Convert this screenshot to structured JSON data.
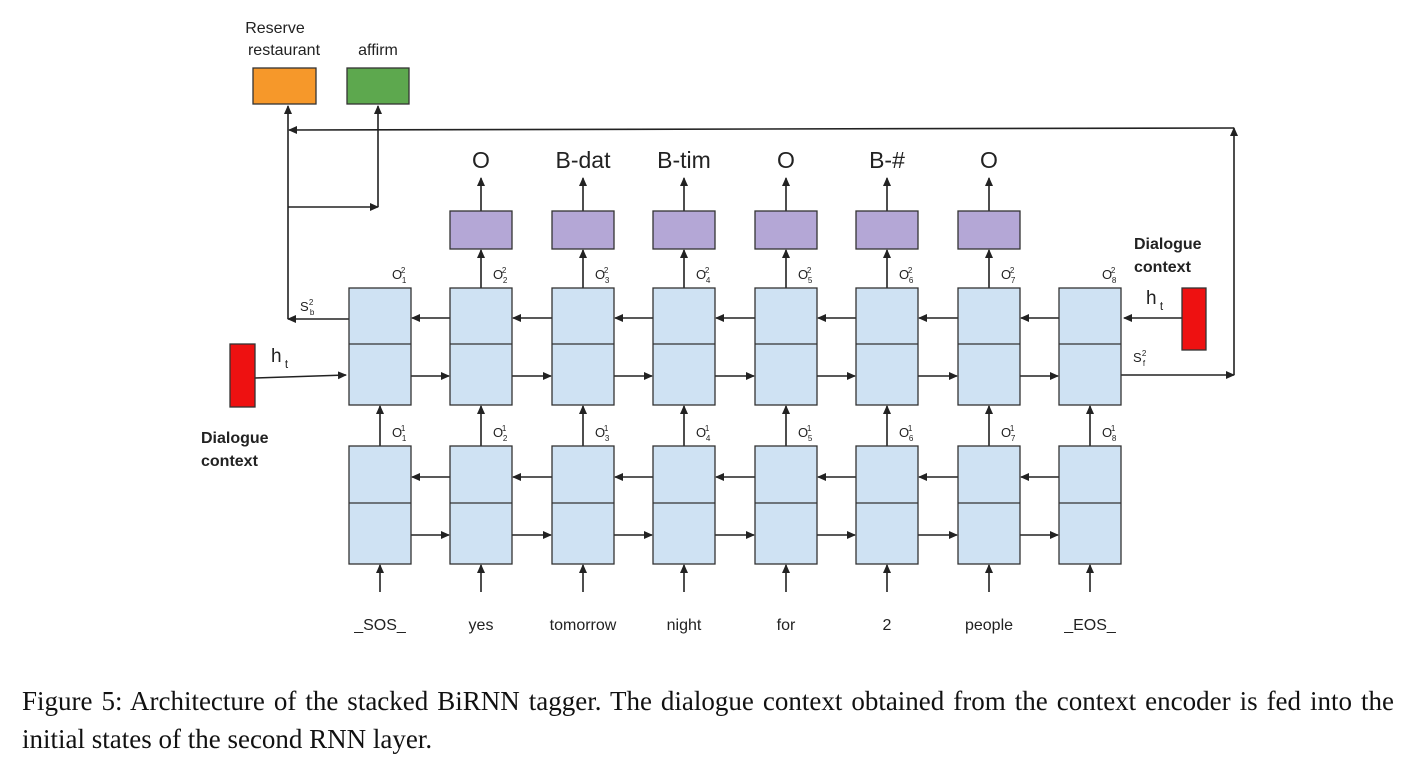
{
  "intent_labels": [
    "Reserve",
    "restaurant",
    "affirm"
  ],
  "colors": {
    "cell": "#cfe2f3",
    "output_box": "#b4a7d6",
    "intent_reserve": "#f6982a",
    "intent_affirm": "#5da84e",
    "context_block": "#ee1111"
  },
  "tags": [
    "O",
    "B-dat",
    "B-tim",
    "O",
    "B-#",
    "O"
  ],
  "upper_outputs": [
    {
      "base": "O",
      "sup": "2",
      "sub": "1"
    },
    {
      "base": "O",
      "sup": "2",
      "sub": "2"
    },
    {
      "base": "O",
      "sup": "2",
      "sub": "3"
    },
    {
      "base": "O",
      "sup": "2",
      "sub": "4"
    },
    {
      "base": "O",
      "sup": "2",
      "sub": "5"
    },
    {
      "base": "O",
      "sup": "2",
      "sub": "6"
    },
    {
      "base": "O",
      "sup": "2",
      "sub": "7"
    },
    {
      "base": "O",
      "sup": "2",
      "sub": "8"
    }
  ],
  "lower_outputs": [
    {
      "base": "O",
      "sup": "1",
      "sub": "1"
    },
    {
      "base": "O",
      "sup": "1",
      "sub": "2"
    },
    {
      "base": "O",
      "sup": "1",
      "sub": "3"
    },
    {
      "base": "O",
      "sup": "1",
      "sub": "4"
    },
    {
      "base": "O",
      "sup": "1",
      "sub": "5"
    },
    {
      "base": "O",
      "sup": "1",
      "sub": "6"
    },
    {
      "base": "O",
      "sup": "1",
      "sub": "7"
    },
    {
      "base": "O",
      "sup": "1",
      "sub": "8"
    }
  ],
  "state_backward": {
    "base": "S",
    "sup": "2",
    "sub": "b"
  },
  "state_forward": {
    "base": "S",
    "sup": "2",
    "sub": "f"
  },
  "hidden_left": {
    "base": "h",
    "sub": "t"
  },
  "hidden_right": {
    "base": "h",
    "sub": "t"
  },
  "dialogue_context_left": [
    "Dialogue",
    "context"
  ],
  "dialogue_context_right": [
    "Dialogue",
    "context"
  ],
  "tokens": [
    "_SOS_",
    "yes",
    "tomorrow",
    "night",
    "for",
    "2",
    "people",
    "_EOS_"
  ],
  "caption": "Figure 5: Architecture of the stacked BiRNN tagger. The dialogue context obtained from the context encoder is fed into the initial states of the second RNN layer."
}
